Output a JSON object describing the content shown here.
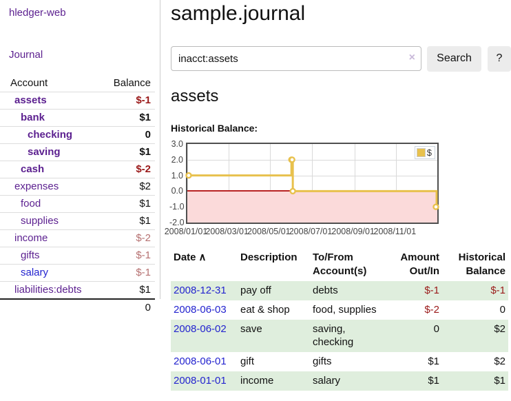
{
  "colors": {
    "link_purple": "#5b1f8f",
    "link_blue": "#2323cf",
    "negative_red": "#9a1919",
    "negative_faded_red": "#b57070",
    "row_stripe_green": "#dfeedd",
    "chart_series_gold": "#e8c14d"
  },
  "app": {
    "title": "hledger-web",
    "nav_journal": "Journal"
  },
  "sidebar": {
    "header": {
      "account": "Account",
      "balance": "Balance"
    },
    "accounts": [
      {
        "name": "assets",
        "balance": "$-1",
        "level": 1,
        "bold": true,
        "balance_style": "negative",
        "link_style": "purple"
      },
      {
        "name": "bank",
        "balance": "$1",
        "level": 2,
        "bold": true,
        "balance_style": "normal",
        "link_style": "purple"
      },
      {
        "name": "checking",
        "balance": "0",
        "level": 3,
        "bold": true,
        "balance_style": "normal",
        "link_style": "purple"
      },
      {
        "name": "saving",
        "balance": "$1",
        "level": 3,
        "bold": true,
        "balance_style": "normal",
        "link_style": "purple"
      },
      {
        "name": "cash",
        "balance": "$-2",
        "level": 2,
        "bold": true,
        "balance_style": "negative",
        "link_style": "purple"
      },
      {
        "name": "expenses",
        "balance": "$2",
        "level": 1,
        "bold": false,
        "balance_style": "normal",
        "link_style": "purple"
      },
      {
        "name": "food",
        "balance": "$1",
        "level": 2,
        "bold": false,
        "balance_style": "normal",
        "link_style": "purple"
      },
      {
        "name": "supplies",
        "balance": "$1",
        "level": 2,
        "bold": false,
        "balance_style": "normal",
        "link_style": "purple"
      },
      {
        "name": "income",
        "balance": "$-2",
        "level": 1,
        "bold": false,
        "balance_style": "negative-faded",
        "link_style": "purple"
      },
      {
        "name": "gifts",
        "balance": "$-1",
        "level": 2,
        "bold": false,
        "balance_style": "negative-faded",
        "link_style": "purple"
      },
      {
        "name": "salary",
        "balance": "$-1",
        "level": 2,
        "bold": false,
        "balance_style": "negative-faded",
        "link_style": "blue"
      },
      {
        "name": "liabilities:debts",
        "balance": "$1",
        "level": 1,
        "bold": false,
        "balance_style": "normal",
        "link_style": "purple"
      }
    ],
    "total": "0"
  },
  "header": {
    "title": "sample.journal"
  },
  "search": {
    "value": "inacct:assets",
    "clear_icon": "×",
    "button_label": "Search",
    "help_label": "?"
  },
  "main": {
    "account_title": "assets",
    "chart_label": "Historical Balance:"
  },
  "chart_data": {
    "type": "line",
    "step": true,
    "title": "Historical Balance",
    "legend": {
      "label": "$",
      "swatch_color": "#e8c14d",
      "position": "top-right"
    },
    "ylim": [
      -2,
      3
    ],
    "x_range_days": [
      0,
      365
    ],
    "grid": true,
    "series": [
      {
        "name": "$",
        "color": "#e8c14d",
        "points": [
          {
            "date": "2008-01-01",
            "day": 0,
            "value": 1
          },
          {
            "date": "2008-06-01",
            "day": 152,
            "value": 2
          },
          {
            "date": "2008-06-02",
            "day": 153,
            "value": 2
          },
          {
            "date": "2008-06-03",
            "day": 154,
            "value": 0
          },
          {
            "date": "2008-12-31",
            "day": 365,
            "value": -1
          }
        ]
      }
    ],
    "x_ticks": [
      {
        "day": 0,
        "label": "2008/01/01"
      },
      {
        "day": 60,
        "label": "2008/03/01"
      },
      {
        "day": 121,
        "label": "2008/05/01"
      },
      {
        "day": 182,
        "label": "2008/07/01"
      },
      {
        "day": 244,
        "label": "2008/09/01"
      },
      {
        "day": 305,
        "label": "2008/11/01"
      }
    ],
    "y_ticks": [
      {
        "value": 3,
        "label": "3.0"
      },
      {
        "value": 2,
        "label": "2.0"
      },
      {
        "value": 1,
        "label": "1.0"
      },
      {
        "value": 0,
        "label": "0.0"
      },
      {
        "value": -1,
        "label": "-1.0"
      },
      {
        "value": -2,
        "label": "-2.0"
      }
    ],
    "markings": {
      "below_zero_fill": "#fbdada",
      "zero_line_color": "#b82222"
    }
  },
  "table": {
    "headers": {
      "date": "Date",
      "sort_indicator": "∧",
      "description": "Description",
      "accounts": "To/From Account(s)",
      "amount": "Amount Out/In",
      "balance": "Historical Balance"
    },
    "rows": [
      {
        "date": "2008-12-31",
        "description": "pay off",
        "accounts": "debts",
        "amount": "$-1",
        "amount_style": "negative",
        "balance": "$-1",
        "balance_style": "negative",
        "stripe": true
      },
      {
        "date": "2008-06-03",
        "description": "eat & shop",
        "accounts": "food, supplies",
        "amount": "$-2",
        "amount_style": "negative",
        "balance": "0",
        "balance_style": "normal",
        "stripe": false
      },
      {
        "date": "2008-06-02",
        "description": "save",
        "accounts": "saving, checking",
        "amount": "0",
        "amount_style": "normal",
        "balance": "$2",
        "balance_style": "normal",
        "stripe": true
      },
      {
        "date": "2008-06-01",
        "description": "gift",
        "accounts": "gifts",
        "amount": "$1",
        "amount_style": "normal",
        "balance": "$2",
        "balance_style": "normal",
        "stripe": false
      },
      {
        "date": "2008-01-01",
        "description": "income",
        "accounts": "salary",
        "amount": "$1",
        "amount_style": "normal",
        "balance": "$1",
        "balance_style": "normal",
        "stripe": true
      }
    ]
  }
}
